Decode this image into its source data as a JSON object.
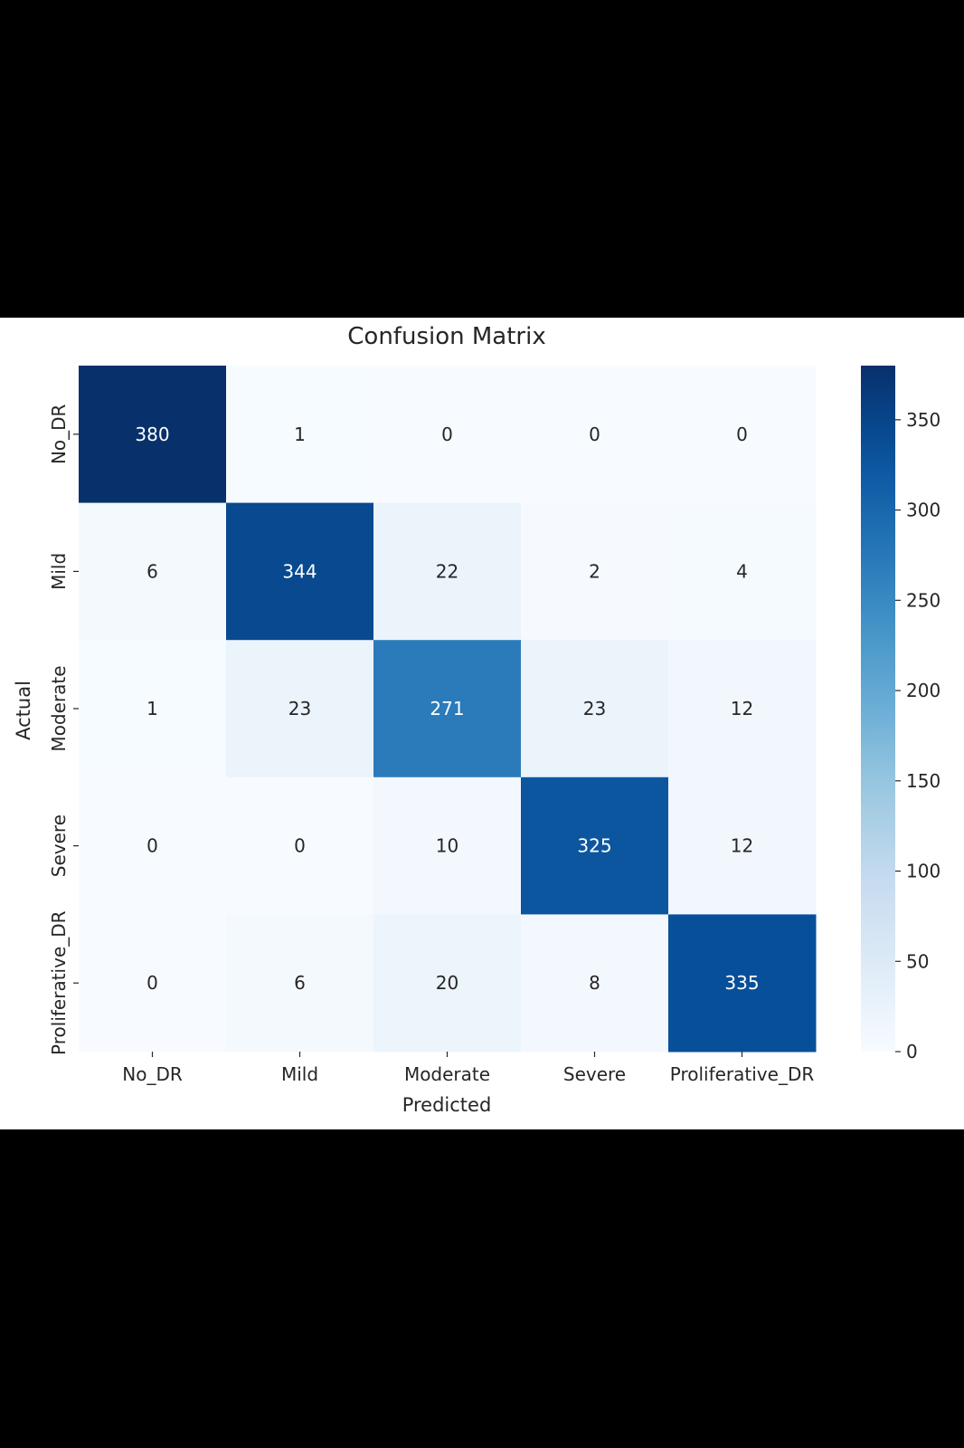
{
  "chart_data": {
    "type": "heatmap",
    "title": "Confusion Matrix",
    "xlabel": "Predicted",
    "ylabel": "Actual",
    "x_categories": [
      "No_DR",
      "Mild",
      "Moderate",
      "Severe",
      "Proliferative_DR"
    ],
    "y_categories": [
      "No_DR",
      "Mild",
      "Moderate",
      "Severe",
      "Proliferative_DR"
    ],
    "values": [
      [
        380,
        1,
        0,
        0,
        0
      ],
      [
        6,
        344,
        22,
        2,
        4
      ],
      [
        1,
        23,
        271,
        23,
        12
      ],
      [
        0,
        0,
        10,
        325,
        12
      ],
      [
        0,
        6,
        20,
        8,
        335
      ]
    ],
    "colormap": "Blues",
    "colorbar": {
      "range": [
        0,
        380
      ],
      "ticks": [
        0,
        50,
        100,
        150,
        200,
        250,
        300,
        350
      ]
    },
    "colors": {
      "low": "#f7fbff",
      "high": "#08306b"
    }
  }
}
